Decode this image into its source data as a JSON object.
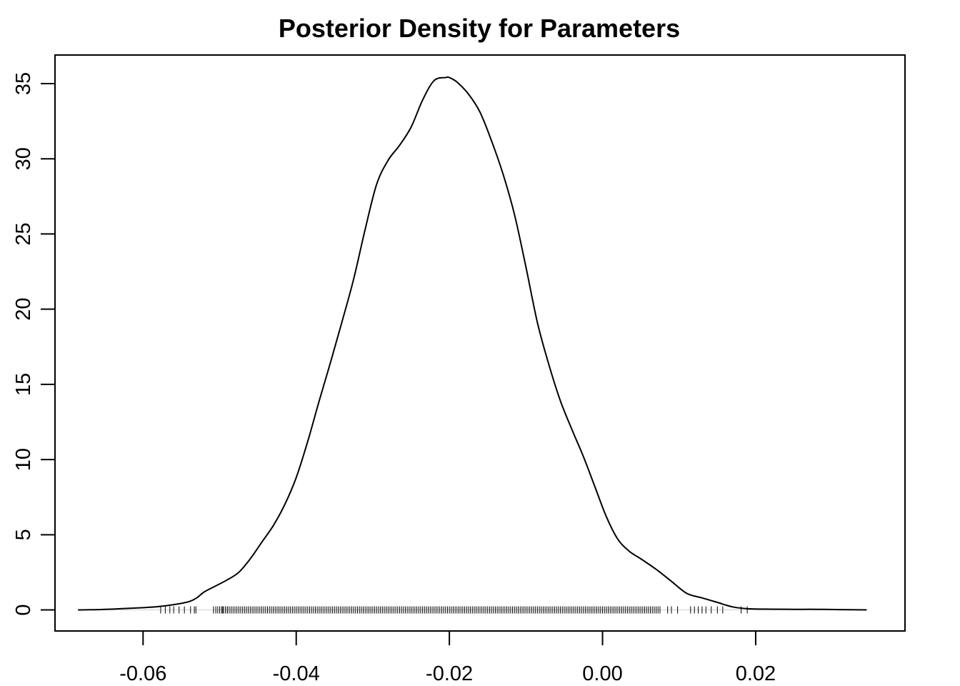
{
  "chart_data": {
    "type": "line",
    "title": "Posterior Density for Parameters",
    "xlabel": "",
    "ylabel": "",
    "xlim": [
      -0.0715,
      0.0395
    ],
    "ylim": [
      -1.4,
      36.9
    ],
    "x_ticks": [
      {
        "value": -0.06,
        "label": "-0.06"
      },
      {
        "value": -0.04,
        "label": "-0.04"
      },
      {
        "value": -0.02,
        "label": "-0.02"
      },
      {
        "value": 0.0,
        "label": "0.00"
      },
      {
        "value": 0.02,
        "label": "0.02"
      }
    ],
    "y_ticks": [
      {
        "value": 0,
        "label": "0"
      },
      {
        "value": 5,
        "label": "5"
      },
      {
        "value": 10,
        "label": "10"
      },
      {
        "value": 15,
        "label": "15"
      },
      {
        "value": 20,
        "label": "20"
      },
      {
        "value": 25,
        "label": "25"
      },
      {
        "value": 30,
        "label": "30"
      },
      {
        "value": 35,
        "label": "35"
      }
    ],
    "grid": false,
    "series": [
      {
        "x": [
          -0.0685,
          -0.066,
          -0.063,
          -0.06,
          -0.058,
          -0.056,
          -0.054,
          -0.053,
          -0.052,
          -0.0505,
          -0.049,
          -0.0475,
          -0.046,
          -0.0445,
          -0.043,
          -0.0415,
          -0.04,
          -0.0385,
          -0.037,
          -0.0355,
          -0.034,
          -0.0325,
          -0.031,
          -0.0295,
          -0.028,
          -0.0265,
          -0.025,
          -0.0235,
          -0.022,
          -0.0205,
          -0.02,
          -0.019,
          -0.0175,
          -0.016,
          -0.0145,
          -0.013,
          -0.0115,
          -0.01,
          -0.0085,
          -0.007,
          -0.0055,
          -0.004,
          -0.0025,
          -0.001,
          0.0005,
          0.002,
          0.0035,
          0.005,
          0.007,
          0.009,
          0.011,
          0.013,
          0.015,
          0.017,
          0.019,
          0.022,
          0.025,
          0.028,
          0.031,
          0.0345
        ],
        "y": [
          0.0,
          0.02,
          0.08,
          0.15,
          0.22,
          0.35,
          0.55,
          0.8,
          1.2,
          1.6,
          2.0,
          2.5,
          3.4,
          4.5,
          5.6,
          7.0,
          8.8,
          11.2,
          13.9,
          16.5,
          19.2,
          22.0,
          25.3,
          28.3,
          29.9,
          30.9,
          32.1,
          33.9,
          35.2,
          35.4,
          35.4,
          35.1,
          34.3,
          33.1,
          31.2,
          29.0,
          26.3,
          22.8,
          19.1,
          16.3,
          13.9,
          12.0,
          10.2,
          8.2,
          6.2,
          4.7,
          3.9,
          3.4,
          2.7,
          1.9,
          1.1,
          0.8,
          0.5,
          0.2,
          0.08,
          0.05,
          0.04,
          0.04,
          0.02,
          0.0
        ]
      }
    ],
    "rug": {
      "sparse": [
        -0.0577,
        -0.0571,
        -0.0565,
        -0.056,
        -0.0553,
        -0.0546,
        -0.0538,
        -0.0533,
        -0.0531,
        -0.0508,
        -0.0496,
        -0.049,
        0.0085,
        0.009,
        0.0098,
        0.0115,
        0.012,
        0.0125,
        0.013,
        0.0135,
        0.0142,
        0.015,
        0.0157,
        0.0181,
        0.0189
      ],
      "dense_from": -0.0505,
      "dense_to": 0.0075,
      "dense_step": 0.00025
    }
  }
}
